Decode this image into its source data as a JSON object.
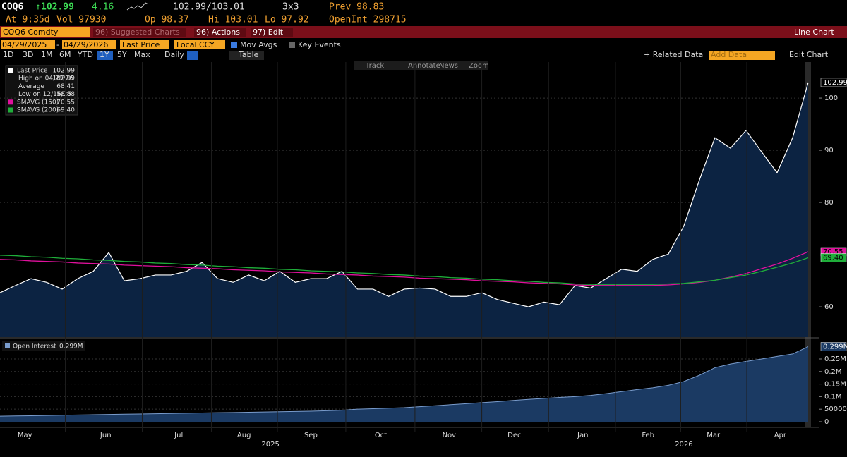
{
  "header": {
    "ticker": "COQ6",
    "last": "102.99",
    "change": "4.16",
    "bid_ask": "102.99/103.01",
    "size": "3x3",
    "prev": "Prev 98.83",
    "time": "At 9:35d",
    "vol": "Vol 97930",
    "open": "Op 98.37",
    "high": "Hi 103.01",
    "low": "Lo 97.92",
    "open_int": "OpenInt 298715"
  },
  "toolbar": {
    "security": "COQ6 Comdty",
    "menus": [
      "96) Suggested Charts",
      "96) Actions",
      "97) Edit"
    ],
    "chart_type": "Line Chart",
    "start_date": "04/29/2025",
    "end_date": "04/29/2026",
    "field": "Last Price",
    "currency": "Local CCY",
    "toggles": [
      "Mov Avgs",
      "Key Events"
    ],
    "periods": [
      "1D",
      "3D",
      "1M",
      "6M",
      "YTD",
      "1Y",
      "5Y",
      "Max"
    ],
    "selected_period": "1Y",
    "frequency": "Daily",
    "table": "Table",
    "related": "+ Related Data",
    "add_data": "Add Data",
    "edit_chart": "Edit Chart",
    "tools": [
      "Track",
      "Annotate",
      "News",
      "Zoom"
    ]
  },
  "chart_data": [
    {
      "type": "line",
      "xlim": [
        0,
        52
      ],
      "ylim": [
        54.2,
        106.9
      ],
      "yticks": [
        60,
        80,
        90,
        100
      ],
      "grid": true,
      "fill": "#0c2342",
      "series": [
        {
          "name": "Last Price",
          "color": "#ffffff",
          "last_label": "102.99",
          "values": [
            62.7,
            64.1,
            65.4,
            64.7,
            63.4,
            65.4,
            66.8,
            70.4,
            65.0,
            65.4,
            66.1,
            66.1,
            66.8,
            68.5,
            65.4,
            64.7,
            66.1,
            65.0,
            66.8,
            64.7,
            65.4,
            65.4,
            66.8,
            63.4,
            63.4,
            62.0,
            63.4,
            63.6,
            63.4,
            62.0,
            62.0,
            62.7,
            61.4,
            60.7,
            60.0,
            60.9,
            60.4,
            64.1,
            63.6,
            65.4,
            67.2,
            66.8,
            69.1,
            70.1,
            75.5,
            84.3,
            92.4,
            90.4,
            93.8,
            89.7,
            85.7,
            92.4,
            102.99
          ]
        },
        {
          "name": "SMAVG (150)",
          "color": "#e0119d",
          "last_label": "70.55",
          "values": [
            69.1,
            69.0,
            68.8,
            68.7,
            68.6,
            68.4,
            68.3,
            68.2,
            68.0,
            67.9,
            67.8,
            67.7,
            67.5,
            67.4,
            67.3,
            67.1,
            67.0,
            66.9,
            66.7,
            66.6,
            66.5,
            66.3,
            66.2,
            66.1,
            65.9,
            65.8,
            65.7,
            65.5,
            65.4,
            65.3,
            65.2,
            65.0,
            64.9,
            64.8,
            64.6,
            64.5,
            64.4,
            64.2,
            64.1,
            64.1,
            64.1,
            64.1,
            64.1,
            64.2,
            64.4,
            64.7,
            65.1,
            65.7,
            66.4,
            67.3,
            68.2,
            69.3,
            70.55
          ]
        },
        {
          "name": "SMAVG (200)",
          "color": "#1fae3a",
          "last_label": "69.40",
          "values": [
            69.9,
            69.8,
            69.6,
            69.5,
            69.3,
            69.2,
            69.0,
            68.9,
            68.7,
            68.6,
            68.4,
            68.3,
            68.1,
            68.0,
            67.8,
            67.7,
            67.5,
            67.4,
            67.2,
            67.1,
            66.9,
            66.8,
            66.7,
            66.5,
            66.4,
            66.2,
            66.1,
            65.9,
            65.8,
            65.6,
            65.5,
            65.3,
            65.2,
            65.0,
            64.9,
            64.7,
            64.6,
            64.4,
            64.3,
            64.3,
            64.3,
            64.3,
            64.3,
            64.4,
            64.5,
            64.8,
            65.1,
            65.6,
            66.1,
            66.8,
            67.6,
            68.4,
            69.4
          ]
        }
      ],
      "stats": [
        {
          "label": "High on 04/29/26",
          "value": "102.99"
        },
        {
          "label": "Average",
          "value": "68.41"
        },
        {
          "label": "Low on 12/16/25",
          "value": "58.88"
        }
      ]
    },
    {
      "type": "area",
      "xlim": [
        0,
        52
      ],
      "ylim": [
        -19700,
        325800
      ],
      "yticks": [
        0,
        50000,
        {
          "value": 100000,
          "label": "0.1M"
        },
        {
          "value": 150000,
          "label": "0.15M"
        },
        {
          "value": 200000,
          "label": "0.2M"
        },
        {
          "value": 250000,
          "label": "0.25M"
        }
      ],
      "xticks": [
        {
          "value": 1.6,
          "label": "May"
        },
        {
          "value": 6.8,
          "label": "Jun"
        },
        {
          "value": 11.5,
          "label": "Jul"
        },
        {
          "value": 15.7,
          "label": "Aug"
        },
        {
          "value": 20,
          "label": "Sep"
        },
        {
          "value": 24.5,
          "label": "Oct"
        },
        {
          "value": 28.9,
          "label": "Nov"
        },
        {
          "value": 33.1,
          "label": "Dec"
        },
        {
          "value": 37.5,
          "label": "Jan"
        },
        {
          "value": 41.7,
          "label": "Feb"
        },
        {
          "value": 45.9,
          "label": "Mar"
        },
        {
          "value": 50.2,
          "label": "Apr"
        }
      ],
      "years": [
        {
          "value": 17.4,
          "label": "2025"
        },
        {
          "value": 44,
          "label": "2026"
        }
      ],
      "series": [
        {
          "name": "Open Interest",
          "last_label": "0.299M",
          "color": "#7a9ccc",
          "fill": "#1b3a63",
          "values": [
            22000,
            23000,
            24000,
            25000,
            26000,
            27000,
            28000,
            29000,
            30000,
            31000,
            32000,
            33000,
            34000,
            35000,
            36000,
            37000,
            38000,
            39000,
            40000,
            41000,
            42000,
            44000,
            46000,
            50000,
            52000,
            54000,
            56000,
            60000,
            64000,
            68000,
            72000,
            76000,
            80000,
            85000,
            89000,
            93000,
            97000,
            100000,
            105000,
            112000,
            120000,
            128000,
            135000,
            145000,
            160000,
            185000,
            215000,
            230000,
            240000,
            250000,
            260000,
            270000,
            299000
          ]
        }
      ]
    }
  ]
}
